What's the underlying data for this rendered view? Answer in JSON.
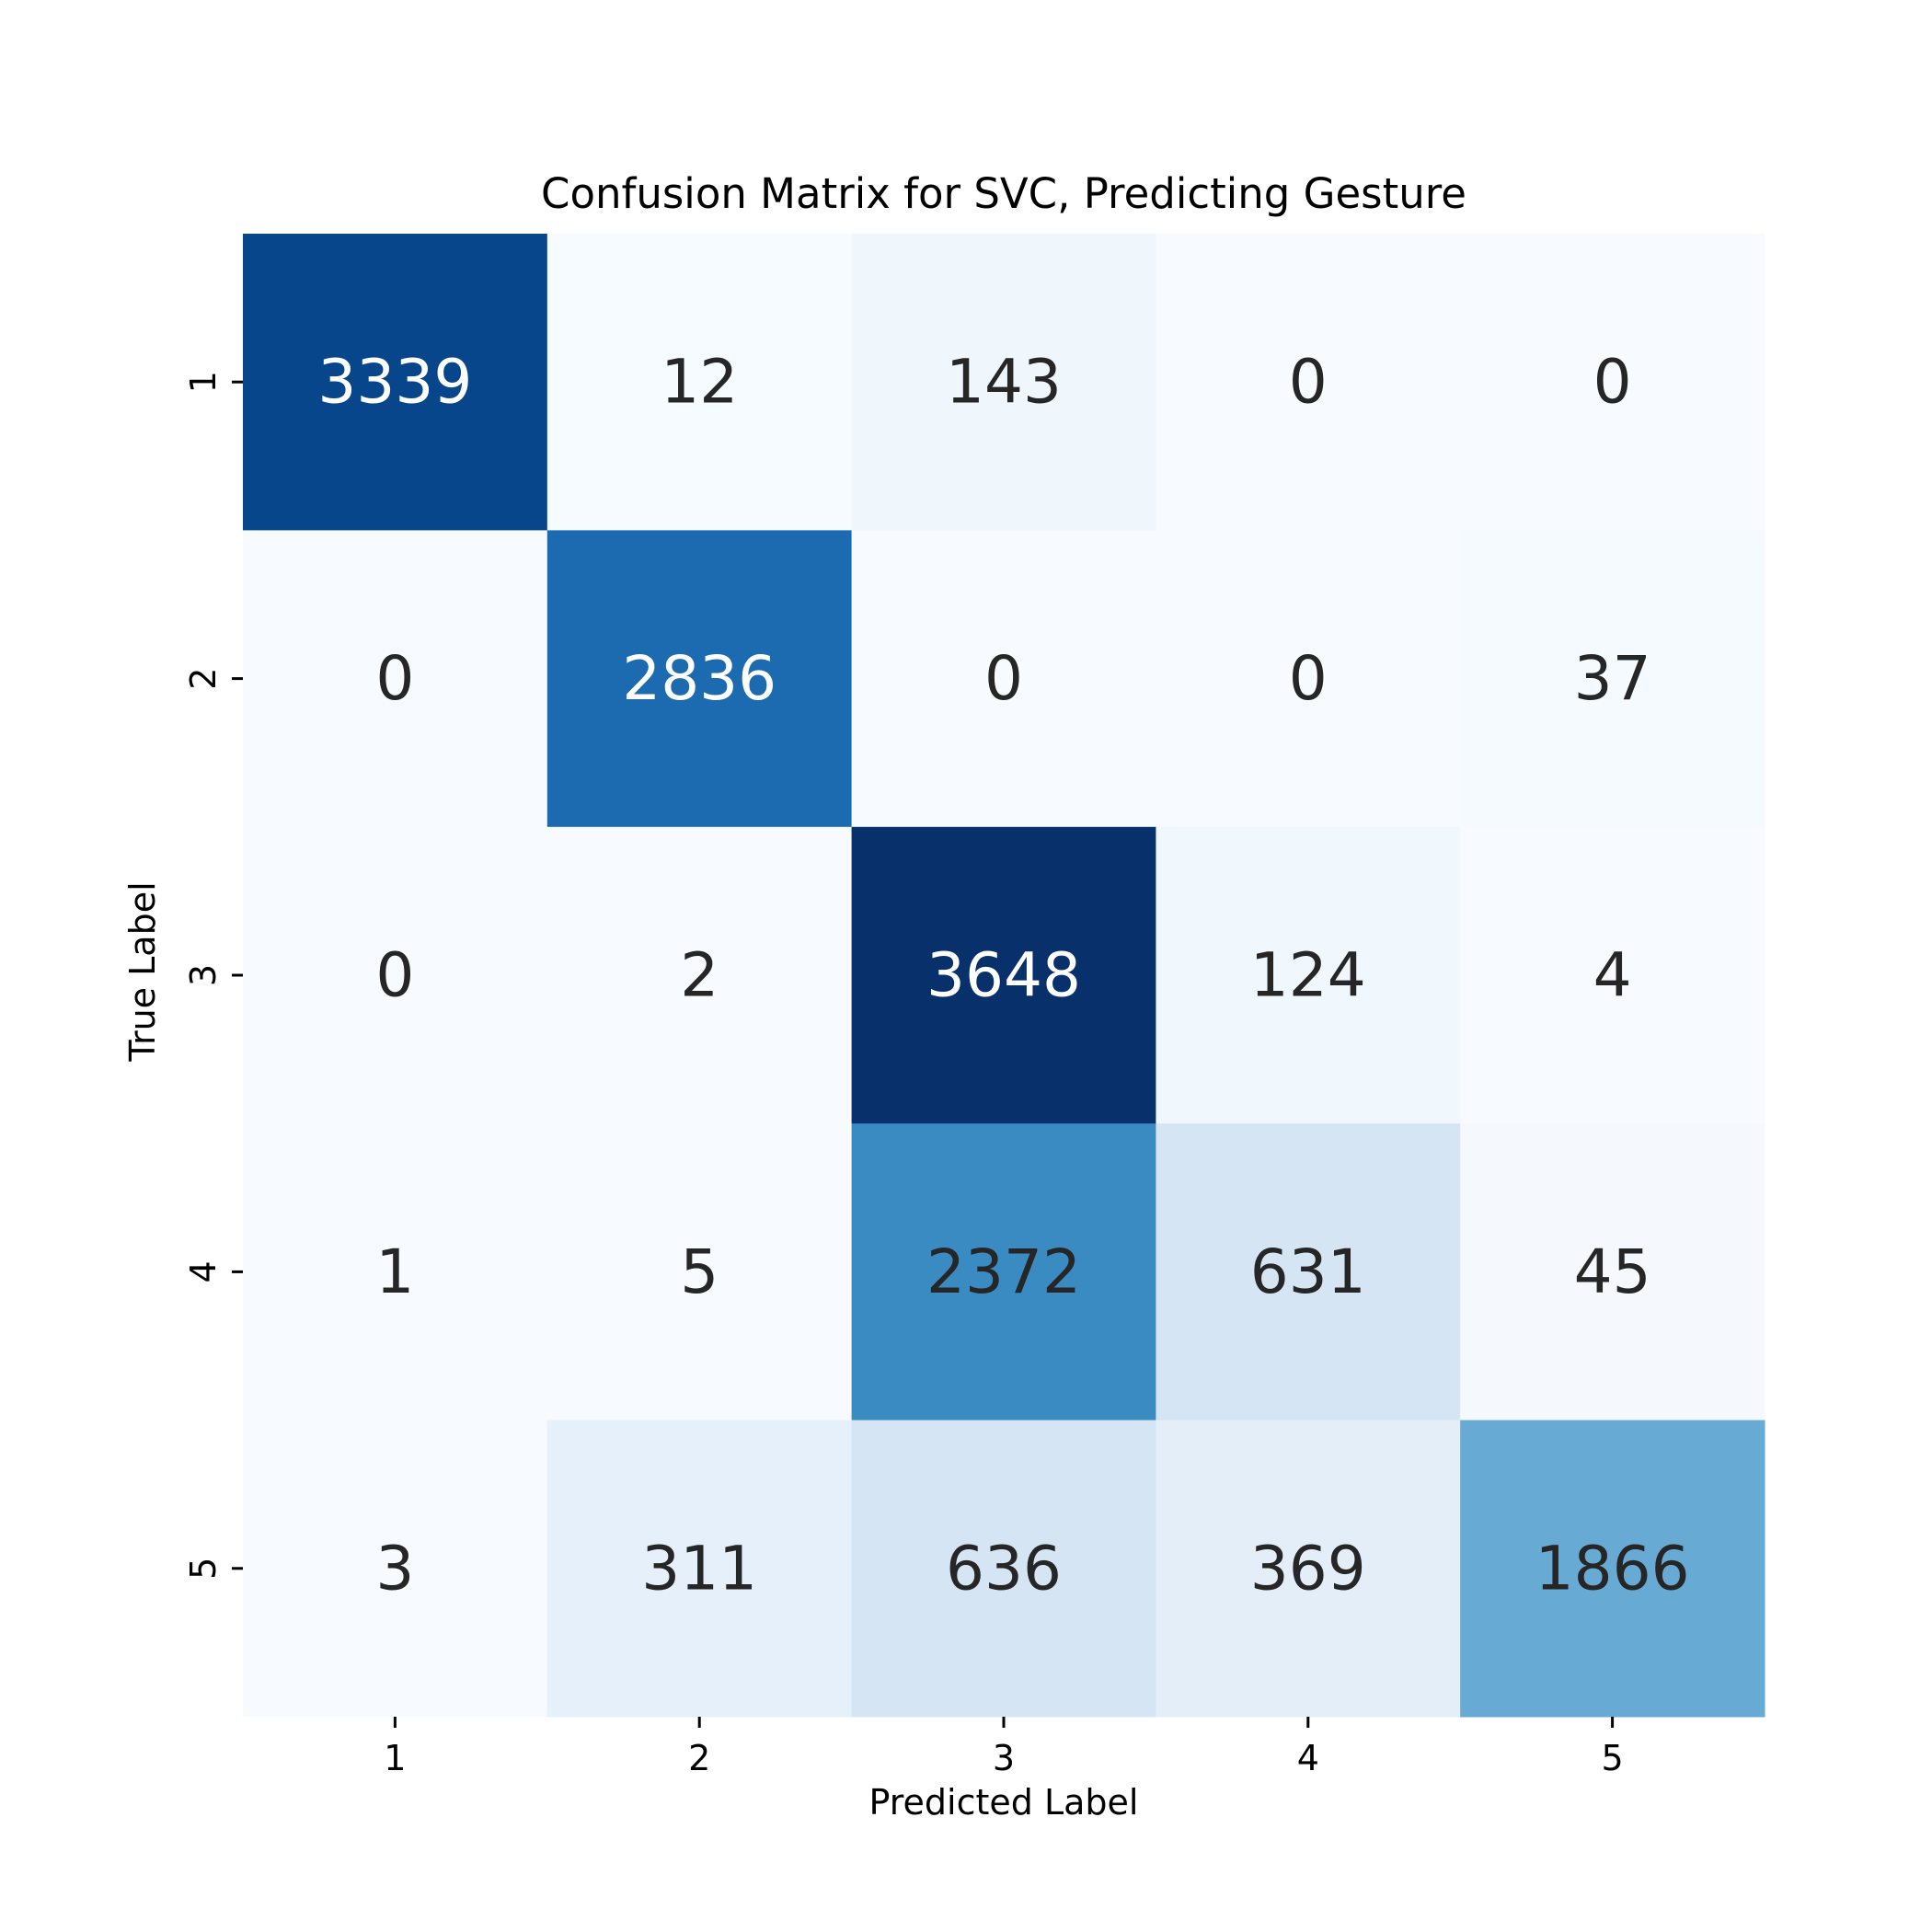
{
  "chart_data": {
    "type": "heatmap",
    "title": "Confusion Matrix for SVC, Predicting Gesture",
    "xlabel": "Predicted Label",
    "ylabel": "True Label",
    "x_categories": [
      "1",
      "2",
      "3",
      "4",
      "5"
    ],
    "y_categories": [
      "1",
      "2",
      "3",
      "4",
      "5"
    ],
    "values": [
      [
        3339,
        12,
        143,
        0,
        0
      ],
      [
        0,
        2836,
        0,
        0,
        37
      ],
      [
        0,
        2,
        3648,
        124,
        4
      ],
      [
        1,
        5,
        2372,
        631,
        45
      ],
      [
        3,
        311,
        636,
        369,
        1866
      ]
    ],
    "colormap": "Blues",
    "colorbar": false,
    "value_range": [
      0,
      3648
    ],
    "text_color_dark": "#262626",
    "text_color_light": "#ffffff"
  }
}
